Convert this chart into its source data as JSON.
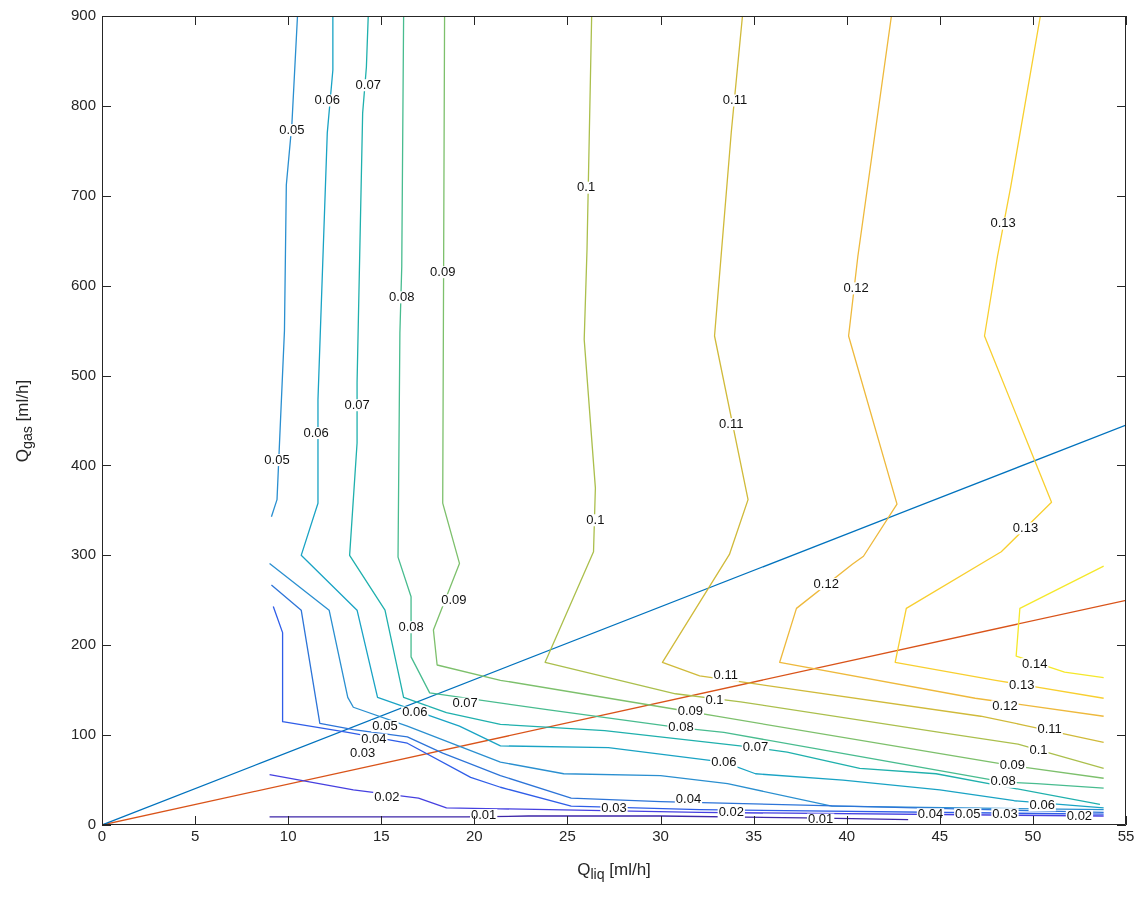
{
  "chart_data": {
    "type": "line",
    "xlabel": "Q$_{liq}$ [ml/h]",
    "ylabel": "Q$_{gas}$ [ml/h]",
    "xlim": [
      0,
      55
    ],
    "xticks": [
      0,
      5,
      10,
      15,
      20,
      25,
      30,
      35,
      40,
      45,
      50,
      55
    ],
    "ylim": [
      0,
      900
    ],
    "yticks": [
      0,
      100,
      200,
      300,
      400,
      500,
      600,
      700,
      800,
      900
    ],
    "grid": false,
    "legend": false,
    "marker": "none",
    "series": [
      {
        "color": "#3e26a8",
        "x": [
          9.0,
          19.6,
          22.9,
          30,
          37.7,
          40.3,
          43.3
        ],
        "values": [
          9,
          9,
          10,
          10,
          8,
          7,
          6
        ]
      },
      {
        "color": "#4640e0",
        "x": [
          9.0,
          13.5,
          17.0,
          18.5,
          21.4,
          32.1,
          53.8
        ],
        "values": [
          56,
          39,
          30,
          19,
          18,
          14,
          10
        ]
      },
      {
        "color": "#2f5de8",
        "x": [
          9.2,
          9.7,
          9.7,
          13.2,
          16.4,
          19.8,
          21.4,
          25.2,
          32.1,
          53.8
        ],
        "values": [
          243,
          214,
          115,
          103,
          91,
          53,
          42,
          21,
          17,
          12
        ]
      },
      {
        "color": "#2d74d8",
        "x": [
          9.1,
          10.7,
          11.7,
          13.5,
          16.4,
          18.3,
          21.4,
          25.2,
          30.0,
          53.8
        ],
        "values": [
          267,
          239,
          113,
          106,
          98,
          80,
          55,
          30,
          26,
          14
        ]
      },
      {
        "color": "#2a8fd0",
        "x": [
          10.5,
          10.2,
          9.9,
          9.8,
          9.4,
          9.1,
          null,
          9.0,
          12.2,
          13.2,
          13.5,
          16.4,
          21.4,
          24.8,
          30,
          33.6,
          39.2,
          53.8
        ],
        "values": [
          900,
          780,
          712,
          550,
          362,
          343,
          null,
          291,
          239,
          142,
          131,
          110,
          70,
          57,
          55,
          46,
          21,
          17
        ]
      },
      {
        "color": "#19a3c4",
        "x": [
          12.4,
          12.4,
          12.1,
          11.6,
          11.6,
          10.7,
          13.7,
          14.8,
          19.2,
          21.4,
          27.2,
          33.4,
          35.1,
          39.8,
          45,
          49.0,
          53.8
        ],
        "values": [
          900,
          840,
          770,
          473,
          358,
          300,
          239,
          142,
          110,
          88,
          86,
          70,
          57,
          50,
          39,
          27,
          19
        ]
      },
      {
        "color": "#1fb0ad",
        "x": [
          14.3,
          14.2,
          14.0,
          13.7,
          13.7,
          13.3,
          15.2,
          16.2,
          18.5,
          21.4,
          27,
          35.1,
          36.8,
          40.7,
          44.8,
          53.6
        ],
        "values": [
          900,
          843,
          792,
          492,
          425,
          300,
          239,
          142,
          125,
          112,
          105,
          86,
          81,
          63,
          57,
          23
        ]
      },
      {
        "color": "#48bc8f",
        "x": [
          16.2,
          16.1,
          16.0,
          15.9,
          16.6,
          16.6,
          17.6,
          24,
          31.1,
          33.4,
          48.4,
          50.2,
          53.8
        ],
        "values": [
          900,
          621,
          547,
          298,
          254,
          187,
          147,
          128,
          108,
          103,
          48,
          46,
          41
        ]
      },
      {
        "color": "#7dc06c",
        "x": [
          18.4,
          18.3,
          19.2,
          17.8,
          18.0,
          21.4,
          31.6,
          33.0,
          48.9,
          53.8
        ],
        "values": [
          900,
          358,
          291,
          217,
          178,
          161,
          126,
          121,
          66,
          52
        ]
      },
      {
        "color": "#abbf4c",
        "x": [
          26.3,
          26.05,
          25.9,
          26.5,
          26.4,
          23.8,
          30.8,
          34.3,
          45,
          49.2,
          53.8
        ],
        "values": [
          900,
          640,
          540,
          375,
          304,
          181,
          146,
          137,
          103,
          90,
          63
        ]
      },
      {
        "color": "#d0ba3a",
        "x": [
          34.4,
          33.8,
          32.9,
          34.7,
          33.7,
          30.1,
          32.1,
          35.1,
          47.2,
          49.3,
          53.8
        ],
        "values": [
          900,
          771,
          544,
          362,
          301,
          181,
          166,
          157,
          121,
          112,
          92
        ]
      },
      {
        "color": "#eeb93c",
        "x": [
          42.4,
          40.6,
          40.1,
          42.7,
          40.9,
          40.3,
          37.3,
          36.4,
          46.9,
          53.8
        ],
        "values": [
          900,
          633,
          544,
          357,
          299,
          290,
          241,
          181,
          141,
          121
        ]
      },
      {
        "color": "#f8cf2f",
        "x": [
          50.4,
          48.8,
          48.1,
          47.4,
          51.0,
          48.3,
          43.2,
          42.6,
          48.0,
          53.8
        ],
        "values": [
          900,
          709,
          633,
          544,
          359,
          304,
          241,
          181,
          161,
          141
        ]
      },
      {
        "color": "#f5e82a",
        "x": [
          53.8,
          49.3,
          49.1,
          51.7,
          53.8
        ],
        "values": [
          288,
          241,
          188,
          170,
          164
        ]
      },
      {
        "color": "#0072bd",
        "x": [
          0,
          55
        ],
        "values": [
          0,
          445
        ]
      },
      {
        "color": "#d95319",
        "x": [
          0,
          55
        ],
        "values": [
          0,
          250
        ]
      }
    ],
    "annotations": [
      {
        "text": "0.05",
        "x": 10.2,
        "y": 773
      },
      {
        "text": "0.05",
        "x": 9.4,
        "y": 406
      },
      {
        "text": "0.05",
        "x": 15.2,
        "y": 110
      },
      {
        "text": "0.06",
        "x": 12.1,
        "y": 806
      },
      {
        "text": "0.06",
        "x": 11.5,
        "y": 436
      },
      {
        "text": "0.06",
        "x": 16.8,
        "y": 125
      },
      {
        "text": "0.06",
        "x": 33.4,
        "y": 70
      },
      {
        "text": "0.06",
        "x": 50.5,
        "y": 22
      },
      {
        "text": "0.07",
        "x": 14.3,
        "y": 823
      },
      {
        "text": "0.07",
        "x": 13.7,
        "y": 467
      },
      {
        "text": "0.07",
        "x": 19.5,
        "y": 135
      },
      {
        "text": "0.07",
        "x": 35.1,
        "y": 86
      },
      {
        "text": "0.08",
        "x": 16.1,
        "y": 587
      },
      {
        "text": "0.08",
        "x": 16.6,
        "y": 220
      },
      {
        "text": "0.08",
        "x": 31.1,
        "y": 108
      },
      {
        "text": "0.08",
        "x": 48.4,
        "y": 48
      },
      {
        "text": "0.09",
        "x": 18.3,
        "y": 615
      },
      {
        "text": "0.09",
        "x": 18.9,
        "y": 250
      },
      {
        "text": "0.09",
        "x": 31.6,
        "y": 126
      },
      {
        "text": "0.09",
        "x": 48.9,
        "y": 66
      },
      {
        "text": "0.1",
        "x": 26.0,
        "y": 709
      },
      {
        "text": "0.1",
        "x": 26.5,
        "y": 339
      },
      {
        "text": "0.1",
        "x": 32.9,
        "y": 139
      },
      {
        "text": "0.1",
        "x": 50.3,
        "y": 83
      },
      {
        "text": "0.11",
        "x": 34.0,
        "y": 806
      },
      {
        "text": "0.11",
        "x": 33.8,
        "y": 446
      },
      {
        "text": "0.11",
        "x": 33.5,
        "y": 166
      },
      {
        "text": "0.11",
        "x": 50.9,
        "y": 106
      },
      {
        "text": "0.12",
        "x": 40.5,
        "y": 597
      },
      {
        "text": "0.12",
        "x": 38.9,
        "y": 268
      },
      {
        "text": "0.12",
        "x": 48.5,
        "y": 132
      },
      {
        "text": "0.13",
        "x": 48.4,
        "y": 669
      },
      {
        "text": "0.13",
        "x": 49.6,
        "y": 330
      },
      {
        "text": "0.13",
        "x": 49.4,
        "y": 155
      },
      {
        "text": "0.14",
        "x": 50.1,
        "y": 179
      },
      {
        "text": "0.04",
        "x": 14.6,
        "y": 95
      },
      {
        "text": "0.04",
        "x": 31.5,
        "y": 28
      },
      {
        "text": "0.04",
        "x": 44.5,
        "y": 12
      },
      {
        "text": "0.03",
        "x": 14.0,
        "y": 80
      },
      {
        "text": "0.03",
        "x": 27.5,
        "y": 18
      },
      {
        "text": "0.03",
        "x": 48.5,
        "y": 12
      },
      {
        "text": "0.02",
        "x": 15.3,
        "y": 31
      },
      {
        "text": "0.02",
        "x": 33.8,
        "y": 14
      },
      {
        "text": "0.02",
        "x": 52.5,
        "y": 10
      },
      {
        "text": "0.05",
        "x": 46.5,
        "y": 12
      },
      {
        "text": "0.01",
        "x": 20.5,
        "y": 11
      },
      {
        "text": "0.01",
        "x": 38.6,
        "y": 6
      }
    ]
  }
}
